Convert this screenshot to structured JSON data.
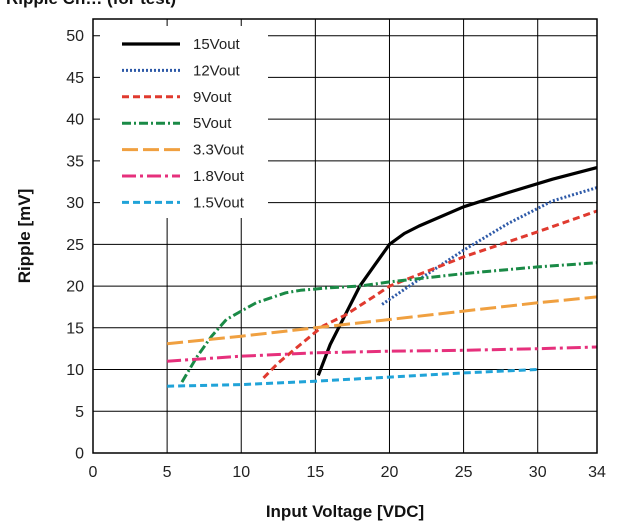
{
  "chart_data": {
    "type": "line",
    "title": "Ripple Ch… (for test)",
    "xlabel": "Input Voltage [VDC]",
    "ylabel": "Ripple [mV]",
    "xlim": [
      0,
      34
    ],
    "ylim": [
      0,
      52
    ],
    "xticks": [
      0,
      5,
      10,
      15,
      20,
      25,
      30,
      34
    ],
    "yticks": [
      0,
      5,
      10,
      15,
      20,
      25,
      30,
      35,
      40,
      45,
      50
    ],
    "grid": true,
    "legend_position": "top-left",
    "series": [
      {
        "name": "15Vout",
        "color": "#000000",
        "style": "solid",
        "x": [
          15.2,
          16,
          17,
          18,
          19,
          20,
          21,
          22,
          25,
          28,
          31,
          34
        ],
        "y": [
          9.3,
          13,
          16.5,
          20,
          22.5,
          25,
          26.3,
          27.2,
          29.5,
          31.2,
          32.8,
          34.2
        ]
      },
      {
        "name": "12Vout",
        "color": "#2e5aa8",
        "style": "dotted",
        "x": [
          19.5,
          22,
          25,
          28,
          31,
          34
        ],
        "y": [
          17.8,
          20.8,
          24.3,
          27.5,
          30.2,
          31.8
        ]
      },
      {
        "name": "9Vout",
        "color": "#e03a2f",
        "style": "dashed",
        "x": [
          11.5,
          12.5,
          14,
          15.5,
          17,
          19,
          20,
          25,
          30,
          34
        ],
        "y": [
          9.0,
          10.8,
          13.0,
          15.2,
          16.5,
          18.8,
          20.0,
          23.5,
          26.5,
          29.0
        ]
      },
      {
        "name": "5Vout",
        "color": "#1a8a46",
        "style": "dashdot",
        "x": [
          6,
          7,
          8,
          9,
          10,
          11,
          12,
          13,
          14,
          16,
          18,
          20,
          25,
          30,
          34
        ],
        "y": [
          8.5,
          11.5,
          14.0,
          16.0,
          17.0,
          18.0,
          18.6,
          19.2,
          19.5,
          19.8,
          20.0,
          20.5,
          21.5,
          22.3,
          22.8
        ]
      },
      {
        "name": "3.3Vout",
        "color": "#f0a040",
        "style": "longdash",
        "x": [
          5,
          10,
          15,
          20,
          25,
          30,
          34
        ],
        "y": [
          13.1,
          14.0,
          15.0,
          16.0,
          17.0,
          18.0,
          18.7
        ]
      },
      {
        "name": "1.8Vout",
        "color": "#e6307c",
        "style": "dashdot-long",
        "x": [
          5,
          10,
          15,
          20,
          25,
          30,
          34
        ],
        "y": [
          11.0,
          11.6,
          12.0,
          12.2,
          12.3,
          12.5,
          12.7
        ]
      },
      {
        "name": "1.5Vout",
        "color": "#20a3d8",
        "style": "dashed",
        "x": [
          5,
          10,
          15,
          20,
          25,
          30
        ],
        "y": [
          8.0,
          8.2,
          8.6,
          9.1,
          9.6,
          10.0
        ]
      }
    ]
  }
}
